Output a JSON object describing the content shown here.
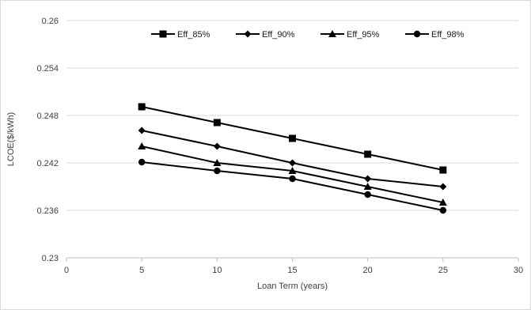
{
  "chart_data": {
    "type": "line",
    "title": "",
    "xlabel": "Loan Term (years)",
    "ylabel": "LCOE($/kWh)",
    "xlim": [
      0,
      30
    ],
    "ylim": [
      0.23,
      0.26
    ],
    "x_ticks": [
      0,
      5,
      10,
      15,
      20,
      25,
      30
    ],
    "y_ticks": [
      0.23,
      0.236,
      0.242,
      0.248,
      0.254,
      0.26
    ],
    "x_tick_labels": [
      "0",
      "5",
      "10",
      "15",
      "20",
      "25",
      "30"
    ],
    "y_tick_labels": [
      "0.23",
      "0.236",
      "0.242",
      "0.248",
      "0.254",
      "0.26"
    ],
    "grid": "horizontal",
    "legend_position": "top",
    "line_color": "#000000",
    "x": [
      5,
      10,
      15,
      20,
      25
    ],
    "series": [
      {
        "name": "Eff_85%",
        "marker": "square",
        "values": [
          0.2491,
          0.2471,
          0.2451,
          0.2431,
          0.2411
        ]
      },
      {
        "name": "Eff_90%",
        "marker": "diamond",
        "values": [
          0.2461,
          0.2441,
          0.242,
          0.24,
          0.239
        ]
      },
      {
        "name": "Eff_95%",
        "marker": "triangle",
        "values": [
          0.2441,
          0.242,
          0.241,
          0.239,
          0.237
        ]
      },
      {
        "name": "Eff_98%",
        "marker": "circle",
        "values": [
          0.2421,
          0.241,
          0.24,
          0.238,
          0.236
        ]
      }
    ]
  }
}
